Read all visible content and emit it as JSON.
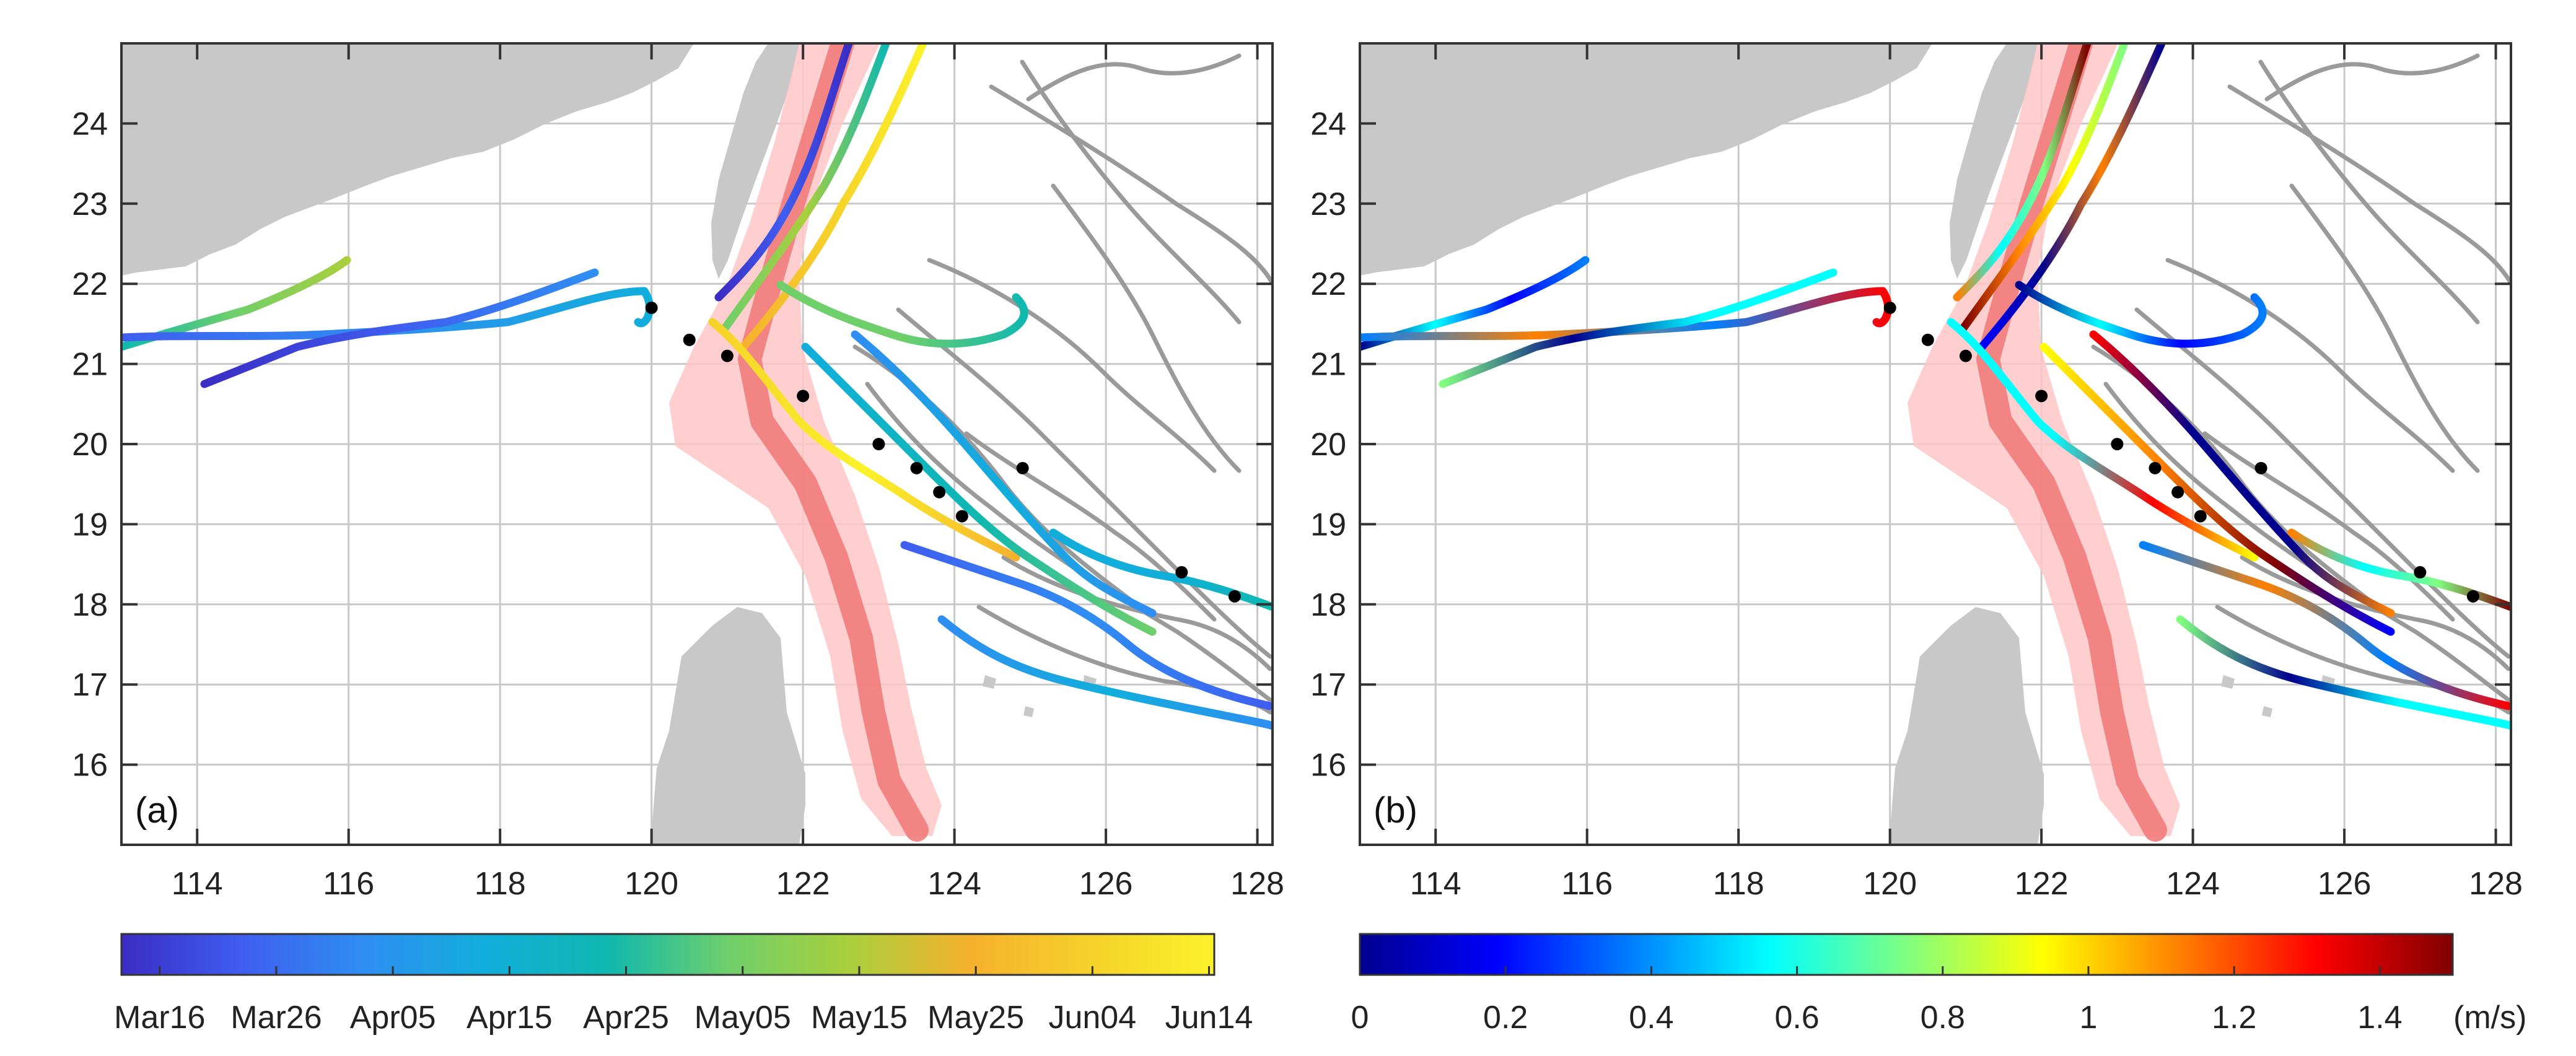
{
  "panels": [
    {
      "id": "a",
      "label": "(a)",
      "colorbar": {
        "ticks": [
          "Mar16",
          "Mar26",
          "Apr05",
          "Apr15",
          "Apr25",
          "May05",
          "May15",
          "May25",
          "Jun04",
          "Jun14"
        ],
        "colors": [
          "#3b2cc4",
          "#3f5ef0",
          "#2f8ef2",
          "#11aedb",
          "#0fb8b0",
          "#6fcf6b",
          "#a9cf3c",
          "#f6b12d",
          "#f5d22a",
          "#fbf22a"
        ]
      }
    },
    {
      "id": "b",
      "label": "(b)",
      "colorbar": {
        "ticks": [
          "0",
          "0.2",
          "0.4",
          "0.6",
          "0.8",
          "1",
          "1.2",
          "1.4"
        ],
        "unit": "(m/s)",
        "range": [
          0,
          1.5
        ],
        "colors": [
          "#00008f",
          "#0000ff",
          "#0080ff",
          "#00ffff",
          "#80ff80",
          "#ffff00",
          "#ff8000",
          "#ff0000",
          "#800000"
        ]
      }
    }
  ],
  "map": {
    "lon_range": [
      113,
      128.2
    ],
    "lat_range": [
      15,
      25
    ],
    "lon_ticks": [
      "114",
      "116",
      "118",
      "120",
      "122",
      "124",
      "126",
      "128"
    ],
    "lat_ticks": [
      "16",
      "17",
      "18",
      "19",
      "20",
      "21",
      "22",
      "23",
      "24"
    ],
    "grid": true,
    "land_color": "#c8c8c8",
    "gray_track_color": "#9a9a9a",
    "kuroshio_band_color": "#ffc7c7",
    "kuroshio_axis_color": "#f27b7b"
  },
  "deployment_points": [
    [
      120.0,
      21.7
    ],
    [
      120.5,
      21.3
    ],
    [
      121.0,
      21.1
    ],
    [
      122.0,
      20.6
    ],
    [
      123.0,
      20.0
    ],
    [
      123.5,
      19.7
    ],
    [
      123.8,
      19.4
    ],
    [
      124.1,
      19.1
    ],
    [
      124.9,
      19.7
    ],
    [
      127.0,
      18.4
    ],
    [
      127.7,
      18.1
    ]
  ]
}
